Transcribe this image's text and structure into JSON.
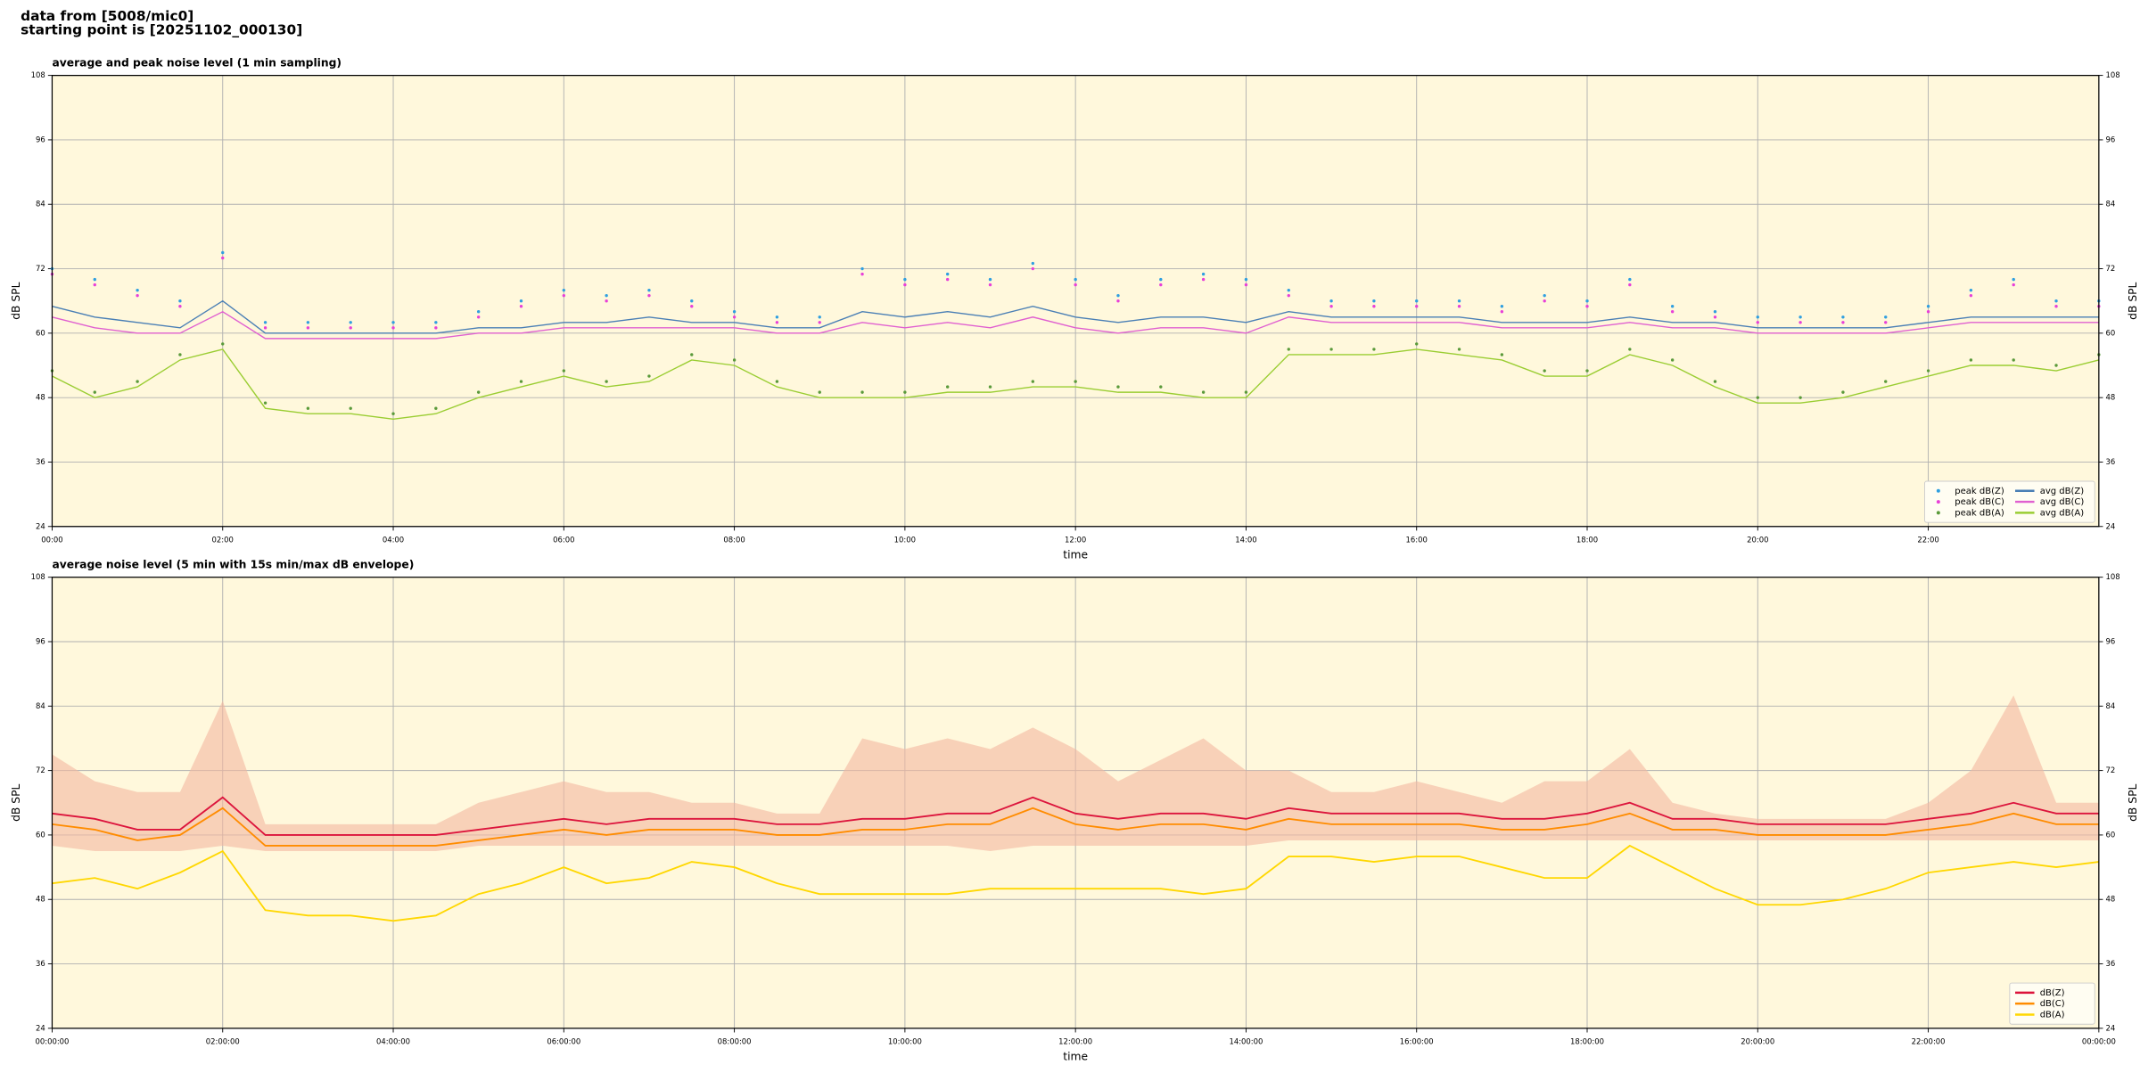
{
  "header": {
    "line1": "data from [5008/mic0]",
    "line2": "starting point is [20251102_000130]"
  },
  "chart_data": [
    {
      "type": "line",
      "title": "average and peak noise level (1 min sampling)",
      "xlabel": "time",
      "ylabel": "dB SPL",
      "x": [
        "00:00",
        "00:30",
        "01:00",
        "01:30",
        "02:00",
        "02:30",
        "03:00",
        "03:30",
        "04:00",
        "04:30",
        "05:00",
        "05:30",
        "06:00",
        "06:30",
        "07:00",
        "07:30",
        "08:00",
        "08:30",
        "09:00",
        "09:30",
        "10:00",
        "10:30",
        "11:00",
        "11:30",
        "12:00",
        "12:30",
        "13:00",
        "13:30",
        "14:00",
        "14:30",
        "15:00",
        "15:30",
        "16:00",
        "16:30",
        "17:00",
        "17:30",
        "18:00",
        "18:30",
        "19:00",
        "19:30",
        "20:00",
        "20:30",
        "21:00",
        "21:30",
        "22:00",
        "22:30",
        "23:00",
        "23:30",
        "24:00"
      ],
      "xlim": [
        "00:00",
        "24:00"
      ],
      "xticks": [
        "00:00",
        "02:00",
        "04:00",
        "06:00",
        "08:00",
        "10:00",
        "12:00",
        "14:00",
        "16:00",
        "18:00",
        "20:00",
        "22:00"
      ],
      "ylim": [
        24,
        108
      ],
      "yticks": [
        24,
        36,
        48,
        60,
        72,
        84,
        96,
        108
      ],
      "grid": true,
      "background": "#fff8dc",
      "legend": "lower right",
      "legend_columns": 2,
      "series": [
        {
          "name": "peak dB(Z)",
          "style": "scatter",
          "color": "#2f9fe0",
          "values": [
            72,
            70,
            68,
            66,
            75,
            62,
            62,
            62,
            62,
            62,
            64,
            66,
            68,
            67,
            68,
            66,
            64,
            63,
            63,
            72,
            70,
            71,
            70,
            73,
            70,
            67,
            70,
            71,
            70,
            68,
            66,
            66,
            66,
            66,
            65,
            67,
            66,
            70,
            65,
            64,
            63,
            63,
            63,
            63,
            65,
            68,
            70,
            66,
            66
          ]
        },
        {
          "name": "peak dB(C)",
          "style": "scatter",
          "color": "#e840d8",
          "values": [
            71,
            69,
            67,
            65,
            74,
            61,
            61,
            61,
            61,
            61,
            63,
            65,
            67,
            66,
            67,
            65,
            63,
            62,
            62,
            71,
            69,
            70,
            69,
            72,
            69,
            66,
            69,
            70,
            69,
            67,
            65,
            65,
            65,
            65,
            64,
            66,
            65,
            69,
            64,
            63,
            62,
            62,
            62,
            62,
            64,
            67,
            69,
            65,
            65
          ]
        },
        {
          "name": "peak dB(A)",
          "style": "scatter",
          "color": "#5a9a3a",
          "values": [
            53,
            49,
            51,
            56,
            58,
            47,
            46,
            46,
            45,
            46,
            49,
            51,
            53,
            51,
            52,
            56,
            55,
            51,
            49,
            49,
            49,
            50,
            50,
            51,
            51,
            50,
            50,
            49,
            49,
            57,
            57,
            57,
            58,
            57,
            56,
            53,
            53,
            57,
            55,
            51,
            48,
            48,
            49,
            51,
            53,
            55,
            55,
            54,
            56
          ]
        },
        {
          "name": "avg dB(Z)",
          "style": "line",
          "color": "#4a7fb5",
          "values": [
            65,
            63,
            62,
            61,
            66,
            60,
            60,
            60,
            60,
            60,
            61,
            61,
            62,
            62,
            63,
            62,
            62,
            61,
            61,
            64,
            63,
            64,
            63,
            65,
            63,
            62,
            63,
            63,
            62,
            64,
            63,
            63,
            63,
            63,
            62,
            62,
            62,
            63,
            62,
            62,
            61,
            61,
            61,
            61,
            62,
            63,
            63,
            63,
            63
          ]
        },
        {
          "name": "avg dB(C)",
          "style": "line",
          "color": "#e060d0",
          "values": [
            63,
            61,
            60,
            60,
            64,
            59,
            59,
            59,
            59,
            59,
            60,
            60,
            61,
            61,
            61,
            61,
            61,
            60,
            60,
            62,
            61,
            62,
            61,
            63,
            61,
            60,
            61,
            61,
            60,
            63,
            62,
            62,
            62,
            62,
            61,
            61,
            61,
            62,
            61,
            61,
            60,
            60,
            60,
            60,
            61,
            62,
            62,
            62,
            62
          ]
        },
        {
          "name": "avg dB(A)",
          "style": "line",
          "color": "#9acd32",
          "values": [
            52,
            48,
            50,
            55,
            57,
            46,
            45,
            45,
            44,
            45,
            48,
            50,
            52,
            50,
            51,
            55,
            54,
            50,
            48,
            48,
            48,
            49,
            49,
            50,
            50,
            49,
            49,
            48,
            48,
            56,
            56,
            56,
            57,
            56,
            55,
            52,
            52,
            56,
            54,
            50,
            47,
            47,
            48,
            50,
            52,
            54,
            54,
            53,
            55
          ]
        }
      ]
    },
    {
      "type": "line",
      "title": "average noise level (5 min with 15s min/max dB envelope)",
      "xlabel": "time",
      "ylabel": "dB SPL",
      "x": [
        "00:00",
        "00:30",
        "01:00",
        "01:30",
        "02:00",
        "02:30",
        "03:00",
        "03:30",
        "04:00",
        "04:30",
        "05:00",
        "05:30",
        "06:00",
        "06:30",
        "07:00",
        "07:30",
        "08:00",
        "08:30",
        "09:00",
        "09:30",
        "10:00",
        "10:30",
        "11:00",
        "11:30",
        "12:00",
        "12:30",
        "13:00",
        "13:30",
        "14:00",
        "14:30",
        "15:00",
        "15:30",
        "16:00",
        "16:30",
        "17:00",
        "17:30",
        "18:00",
        "18:30",
        "19:00",
        "19:30",
        "20:00",
        "20:30",
        "21:00",
        "21:30",
        "22:00",
        "22:30",
        "23:00",
        "23:30",
        "24:00"
      ],
      "xlim": [
        "00:00",
        "24:00"
      ],
      "xticks": [
        {
          "value": "00:00",
          "label": "00:00:00"
        },
        {
          "value": "02:00",
          "label": "02:00:00"
        },
        {
          "value": "04:00",
          "label": "04:00:00"
        },
        {
          "value": "06:00",
          "label": "06:00:00"
        },
        {
          "value": "08:00",
          "label": "08:00:00"
        },
        {
          "value": "10:00",
          "label": "10:00:00"
        },
        {
          "value": "12:00",
          "label": "12:00:00"
        },
        {
          "value": "14:00",
          "label": "14:00:00"
        },
        {
          "value": "16:00",
          "label": "16:00:00"
        },
        {
          "value": "18:00",
          "label": "18:00:00"
        },
        {
          "value": "20:00",
          "label": "20:00:00"
        },
        {
          "value": "22:00",
          "label": "22:00:00"
        },
        {
          "value": "24:00",
          "label": "00:00:00"
        }
      ],
      "ylim": [
        24,
        108
      ],
      "yticks": [
        24,
        36,
        48,
        60,
        72,
        84,
        96,
        108
      ],
      "grid": true,
      "background": "#fff8dc",
      "legend": "lower right",
      "legend_columns": 1,
      "envelope": {
        "color": "#f4b8a0",
        "high": [
          75,
          70,
          68,
          68,
          85,
          62,
          62,
          62,
          62,
          62,
          66,
          68,
          70,
          68,
          68,
          66,
          66,
          64,
          64,
          78,
          76,
          78,
          76,
          80,
          76,
          70,
          74,
          78,
          72,
          72,
          68,
          68,
          70,
          68,
          66,
          70,
          70,
          76,
          66,
          64,
          63,
          63,
          63,
          63,
          66,
          72,
          86,
          66,
          66
        ],
        "low": [
          58,
          57,
          57,
          57,
          58,
          57,
          57,
          57,
          57,
          57,
          58,
          58,
          58,
          58,
          58,
          58,
          58,
          58,
          58,
          58,
          58,
          58,
          57,
          58,
          58,
          58,
          58,
          58,
          58,
          59,
          59,
          59,
          59,
          59,
          59,
          59,
          59,
          59,
          59,
          59,
          59,
          59,
          59,
          59,
          59,
          59,
          59,
          59,
          59
        ]
      },
      "series": [
        {
          "name": "dB(Z)",
          "style": "line",
          "color": "#dc143c",
          "values": [
            64,
            63,
            61,
            61,
            67,
            60,
            60,
            60,
            60,
            60,
            61,
            62,
            63,
            62,
            63,
            63,
            63,
            62,
            62,
            63,
            63,
            64,
            64,
            67,
            64,
            63,
            64,
            64,
            63,
            65,
            64,
            64,
            64,
            64,
            63,
            63,
            64,
            66,
            63,
            63,
            62,
            62,
            62,
            62,
            63,
            64,
            66,
            64,
            64
          ]
        },
        {
          "name": "dB(C)",
          "style": "line",
          "color": "#ff8c00",
          "values": [
            62,
            61,
            59,
            60,
            65,
            58,
            58,
            58,
            58,
            58,
            59,
            60,
            61,
            60,
            61,
            61,
            61,
            60,
            60,
            61,
            61,
            62,
            62,
            65,
            62,
            61,
            62,
            62,
            61,
            63,
            62,
            62,
            62,
            62,
            61,
            61,
            62,
            64,
            61,
            61,
            60,
            60,
            60,
            60,
            61,
            62,
            64,
            62,
            62
          ]
        },
        {
          "name": "dB(A)",
          "style": "line",
          "color": "#ffd700",
          "values": [
            51,
            52,
            50,
            53,
            57,
            46,
            45,
            45,
            44,
            45,
            49,
            51,
            54,
            51,
            52,
            55,
            54,
            51,
            49,
            49,
            49,
            49,
            50,
            50,
            50,
            50,
            50,
            49,
            50,
            56,
            56,
            55,
            56,
            56,
            54,
            52,
            52,
            58,
            54,
            50,
            47,
            47,
            48,
            50,
            53,
            54,
            55,
            54,
            55
          ]
        }
      ]
    }
  ]
}
